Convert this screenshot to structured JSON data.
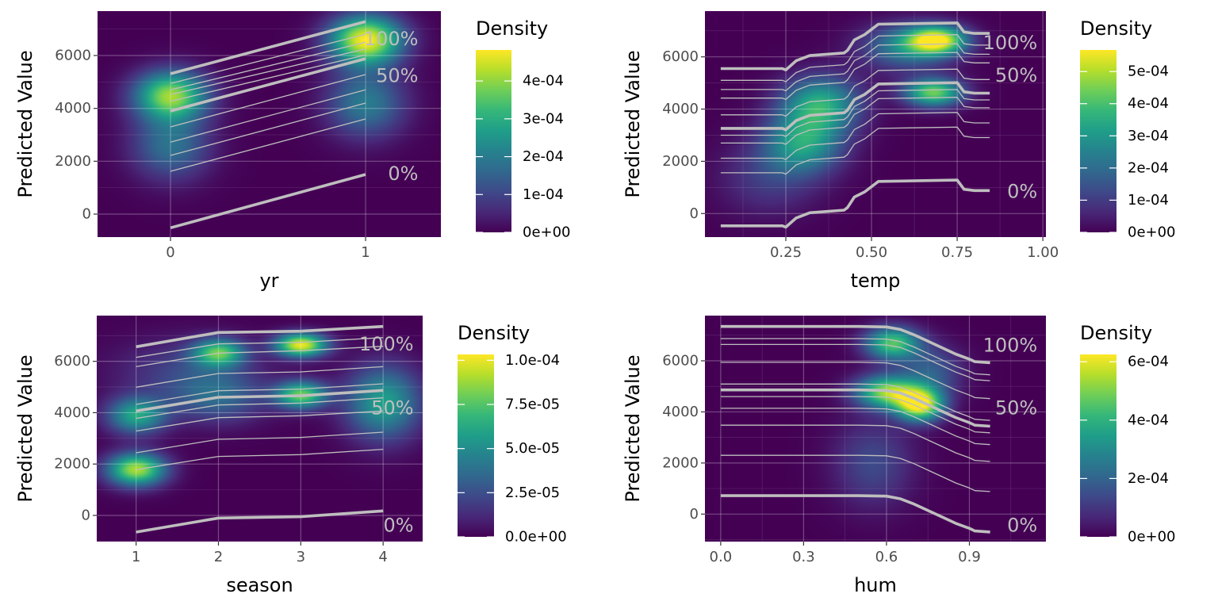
{
  "colors": {
    "viridis": [
      "#440154",
      "#482878",
      "#3e4989",
      "#31688e",
      "#26828e",
      "#1f9e89",
      "#35b779",
      "#6ece58",
      "#b5de2b",
      "#fde725"
    ],
    "line": "#bebebe"
  },
  "chart_data": [
    {
      "type": "line",
      "xlabel": "yr",
      "ylabel": "Predicted Value",
      "xlim": [
        -0.374,
        1.386
      ],
      "ylim": [
        -870,
        7680
      ],
      "x_ticks": [
        0,
        1
      ],
      "x_tick_labels": [
        "0",
        "1"
      ],
      "y_ticks": [
        0,
        2000,
        4000,
        6000
      ],
      "y_tick_labels": [
        "0",
        "2000",
        "4000",
        "6000"
      ],
      "grid": true,
      "x": [
        0,
        1
      ],
      "lines": [
        [
          5310,
          7280
        ],
        [
          4940,
          6800
        ],
        [
          4700,
          6500
        ],
        [
          4520,
          6250
        ],
        [
          4270,
          6020
        ],
        [
          3900,
          5880
        ],
        [
          3300,
          5280
        ],
        [
          2720,
          4700
        ],
        [
          2220,
          4200
        ],
        [
          1620,
          3600
        ],
        [
          -520,
          1500
        ]
      ],
      "annotations": [
        {
          "text": "100%",
          "x": 1.27,
          "y": 6600
        },
        {
          "text": "50%",
          "x": 1.27,
          "y": 5200
        },
        {
          "text": "0%",
          "x": 1.27,
          "y": 1500
        }
      ],
      "legend": {
        "title": "Density",
        "range": [
          0,
          0.000482
        ],
        "ticks": [
          0,
          0.0001,
          0.0002,
          0.0003,
          0.0004
        ],
        "tick_labels": [
          "0e+00",
          "1e-04",
          "2e-04",
          "3e-04",
          "4e-04"
        ],
        "placement": "right"
      },
      "density_peaks": [
        {
          "x": 0,
          "y": 4500,
          "d": 0.0004,
          "sx": 0.13,
          "sy": 650
        },
        {
          "x": 0,
          "y": 2600,
          "d": 0.00018,
          "sx": 0.14,
          "sy": 900
        },
        {
          "x": 1,
          "y": 6600,
          "d": 0.00048,
          "sx": 0.13,
          "sy": 650
        },
        {
          "x": 1,
          "y": 4200,
          "d": 0.0002,
          "sx": 0.14,
          "sy": 900
        }
      ]
    },
    {
      "type": "line",
      "xlabel": "temp",
      "ylabel": "Predicted Value",
      "xlim": [
        0.014,
        1.009
      ],
      "ylim": [
        -902,
        7752
      ],
      "x_ticks": [
        0.25,
        0.5,
        0.75,
        1.0
      ],
      "x_tick_labels": [
        "0.25",
        "0.50",
        "0.75",
        "1.00"
      ],
      "y_ticks": [
        0,
        2000,
        4000,
        6000
      ],
      "y_tick_labels": [
        "0",
        "2000",
        "4000",
        "6000"
      ],
      "grid": true,
      "x": [
        0.06,
        0.24,
        0.25,
        0.28,
        0.32,
        0.42,
        0.43,
        0.45,
        0.48,
        0.5,
        0.52,
        0.75,
        0.77,
        0.8,
        0.845
      ],
      "lines": [
        [
          5550,
          5550,
          5500,
          5850,
          6050,
          6150,
          6250,
          6650,
          6850,
          7050,
          7250,
          7300,
          6950,
          6900,
          6900
        ],
        [
          5100,
          5100,
          5050,
          5400,
          5600,
          5700,
          5800,
          6200,
          6400,
          6600,
          6800,
          6850,
          6500,
          6450,
          6450
        ],
        [
          4750,
          4750,
          4700,
          5050,
          5250,
          5350,
          5450,
          5850,
          6050,
          6250,
          6450,
          6500,
          6150,
          6100,
          6100
        ],
        [
          4420,
          4420,
          4370,
          4720,
          4920,
          5020,
          5120,
          5520,
          5720,
          5920,
          6120,
          6170,
          5820,
          5770,
          5770
        ],
        [
          3780,
          3780,
          3730,
          4080,
          4280,
          4380,
          4480,
          4880,
          5080,
          5280,
          5480,
          5530,
          5180,
          5130,
          5130
        ],
        [
          3260,
          3260,
          3210,
          3560,
          3760,
          3860,
          3960,
          4360,
          4560,
          4760,
          4960,
          5010,
          4660,
          4610,
          4610
        ],
        [
          3000,
          3000,
          2950,
          3300,
          3500,
          3600,
          3700,
          4100,
          4300,
          4500,
          4700,
          4750,
          4400,
          4350,
          4350
        ],
        [
          2700,
          2700,
          2650,
          3000,
          3200,
          3300,
          3400,
          3800,
          4000,
          4200,
          4400,
          4450,
          4100,
          4050,
          4050
        ],
        [
          2120,
          2120,
          2070,
          2420,
          2620,
          2720,
          2820,
          3220,
          3420,
          3620,
          3820,
          3870,
          3520,
          3470,
          3470
        ],
        [
          1560,
          1560,
          1510,
          1860,
          2060,
          2160,
          2260,
          2660,
          2860,
          3060,
          3260,
          3310,
          2960,
          2910,
          2910
        ],
        [
          -470,
          -470,
          -520,
          -170,
          30,
          130,
          230,
          630,
          830,
          1030,
          1230,
          1280,
          930,
          880,
          880
        ]
      ],
      "annotations": [
        {
          "text": "100%",
          "x": 0.984,
          "y": 6508
        },
        {
          "text": "50%",
          "x": 0.984,
          "y": 5263
        },
        {
          "text": "0%",
          "x": 0.984,
          "y": 808
        }
      ],
      "legend": {
        "title": "Density",
        "range": [
          0,
          0.000567
        ],
        "ticks": [
          0,
          0.0001,
          0.0002,
          0.0003,
          0.0004,
          0.0005
        ],
        "tick_labels": [
          "0e+00",
          "1e-04",
          "2e-04",
          "3e-04",
          "4e-04",
          "5e-04"
        ],
        "placement": "right"
      },
      "density_peaks": [
        {
          "x": 0.69,
          "y": 6650,
          "d": 0.00052,
          "sx": 0.06,
          "sy": 380
        },
        {
          "x": 0.68,
          "y": 4650,
          "d": 0.00044,
          "sx": 0.06,
          "sy": 380
        },
        {
          "x": 0.6,
          "y": 6400,
          "d": 0.00025,
          "sx": 0.09,
          "sy": 600
        },
        {
          "x": 0.35,
          "y": 4200,
          "d": 0.00034,
          "sx": 0.08,
          "sy": 750
        },
        {
          "x": 0.3,
          "y": 2700,
          "d": 0.0003,
          "sx": 0.08,
          "sy": 800
        },
        {
          "x": 0.2,
          "y": 1400,
          "d": 0.0001,
          "sx": 0.1,
          "sy": 1000
        }
      ]
    },
    {
      "type": "line",
      "xlabel": "season",
      "ylabel": "Predicted Value",
      "xlim": [
        0.522,
        4.48
      ],
      "ylim": [
        -1020,
        7780
      ],
      "x_ticks": [
        1,
        2,
        3,
        4
      ],
      "x_tick_labels": [
        "1",
        "2",
        "3",
        "4"
      ],
      "y_ticks": [
        0,
        2000,
        4000,
        6000
      ],
      "y_tick_labels": [
        "0",
        "2000",
        "4000",
        "6000"
      ],
      "grid": true,
      "x": [
        1,
        2,
        3,
        4
      ],
      "lines": [
        [
          6565,
          7121,
          7172,
          7357
        ],
        [
          6153,
          6678,
          6740,
          6925
        ],
        [
          5793,
          6318,
          6411,
          6586
        ],
        [
          4991,
          5526,
          5588,
          5793
        ],
        [
          4322,
          4857,
          4919,
          5124
        ],
        [
          4065,
          4600,
          4661,
          4867
        ],
        [
          3777,
          4301,
          4373,
          4579
        ],
        [
          3283,
          3807,
          3879,
          4065
        ],
        [
          2439,
          2963,
          3036,
          3241
        ],
        [
          1780,
          2295,
          2367,
          2573
        ],
        [
          -648,
          -103,
          -51,
          175
        ]
      ],
      "annotations": [
        {
          "text": "100%",
          "x": 4.37,
          "y": 6637
        },
        {
          "text": "50%",
          "x": 4.37,
          "y": 4147
        },
        {
          "text": "0%",
          "x": 4.37,
          "y": -412
        }
      ],
      "legend": {
        "title": "Density",
        "range": [
          0,
          0.0001033
        ],
        "ticks": [
          0,
          2.5e-05,
          5e-05,
          7.5e-05,
          0.0001
        ],
        "tick_labels": [
          "0.0e+00",
          "2.5e-05",
          "5.0e-05",
          "7.5e-05",
          "1.0e-04"
        ],
        "placement": "right"
      },
      "density_peaks": [
        {
          "x": 3,
          "y": 6650,
          "d": 0.0001,
          "sx": 0.22,
          "sy": 320
        },
        {
          "x": 2,
          "y": 6350,
          "d": 7e-05,
          "sx": 0.22,
          "sy": 380
        },
        {
          "x": 3,
          "y": 4700,
          "d": 7.8e-05,
          "sx": 0.22,
          "sy": 380
        },
        {
          "x": 1,
          "y": 1800,
          "d": 9e-05,
          "sx": 0.25,
          "sy": 450
        },
        {
          "x": 1,
          "y": 3900,
          "d": 6e-05,
          "sx": 0.25,
          "sy": 500
        },
        {
          "x": 4,
          "y": 4400,
          "d": 5.8e-05,
          "sx": 0.32,
          "sy": 1000
        },
        {
          "x": 2,
          "y": 4600,
          "d": 3e-05,
          "sx": 0.4,
          "sy": 700
        },
        {
          "x": 1.6,
          "y": 5600,
          "d": 2e-05,
          "sx": 0.6,
          "sy": 900
        }
      ]
    },
    {
      "type": "line",
      "xlabel": "hum",
      "ylabel": "Predicted Value",
      "xlim": [
        -0.057,
        1.177
      ],
      "ylim": [
        -1077,
        7769
      ],
      "x_ticks": [
        0.0,
        0.3,
        0.6,
        0.9
      ],
      "x_tick_labels": [
        "0.0",
        "0.3",
        "0.6",
        "0.9"
      ],
      "y_ticks": [
        0,
        2000,
        4000,
        6000
      ],
      "y_tick_labels": [
        "0",
        "2000",
        "4000",
        "6000"
      ],
      "grid": true,
      "x": [
        0,
        0.5,
        0.6,
        0.65,
        0.7,
        0.75,
        0.8,
        0.85,
        0.9,
        0.92,
        0.975
      ],
      "lines": [
        [
          7345,
          7345,
          7325,
          7225,
          7015,
          6765,
          6515,
          6265,
          6065,
          5965,
          5925
        ],
        [
          6870,
          6870,
          6850,
          6750,
          6540,
          6290,
          6040,
          5790,
          5590,
          5490,
          5450
        ],
        [
          6640,
          6640,
          6620,
          6520,
          6310,
          6060,
          5810,
          5560,
          5360,
          5260,
          5220
        ],
        [
          5940,
          5940,
          5920,
          5820,
          5610,
          5360,
          5110,
          4860,
          4660,
          4560,
          4520
        ],
        [
          5090,
          5090,
          5070,
          4970,
          4760,
          4510,
          4260,
          4010,
          3810,
          3710,
          3670
        ],
        [
          4860,
          4860,
          4840,
          4740,
          4530,
          4280,
          4030,
          3780,
          3580,
          3480,
          3440
        ],
        [
          4600,
          4600,
          4580,
          4480,
          4270,
          4020,
          3770,
          3520,
          3320,
          3220,
          3180
        ],
        [
          4140,
          4140,
          4120,
          4020,
          3810,
          3560,
          3310,
          3060,
          2860,
          2760,
          2720
        ],
        [
          3480,
          3480,
          3460,
          3360,
          3150,
          2900,
          2650,
          2400,
          2200,
          2100,
          2060
        ],
        [
          2300,
          2300,
          2280,
          2180,
          1970,
          1720,
          1470,
          1220,
          1020,
          920,
          880
        ],
        [
          720,
          720,
          700,
          600,
          390,
          140,
          -110,
          -360,
          -560,
          -660,
          -700
        ]
      ],
      "annotations": [
        {
          "text": "100%",
          "x": 1.146,
          "y": 6569
        },
        {
          "text": "50%",
          "x": 1.146,
          "y": 4117
        },
        {
          "text": "0%",
          "x": 1.146,
          "y": -465
        }
      ],
      "legend": {
        "title": "Density",
        "range": [
          0,
          0.000625
        ],
        "ticks": [
          0,
          0.0002,
          0.0004,
          0.0006
        ],
        "tick_labels": [
          "0e+00",
          "2e-04",
          "4e-04",
          "6e-04"
        ],
        "placement": "right"
      },
      "density_peaks": [
        {
          "x": 0.72,
          "y": 4300,
          "d": 0.0006,
          "sx": 0.06,
          "sy": 450
        },
        {
          "x": 0.6,
          "y": 4800,
          "d": 0.0005,
          "sx": 0.08,
          "sy": 450
        },
        {
          "x": 0.62,
          "y": 6700,
          "d": 0.00045,
          "sx": 0.07,
          "sy": 450
        },
        {
          "x": 0.76,
          "y": 5600,
          "d": 0.00018,
          "sx": 0.08,
          "sy": 700
        },
        {
          "x": 0.55,
          "y": 2000,
          "d": 0.00014,
          "sx": 0.1,
          "sy": 1200
        }
      ]
    }
  ]
}
